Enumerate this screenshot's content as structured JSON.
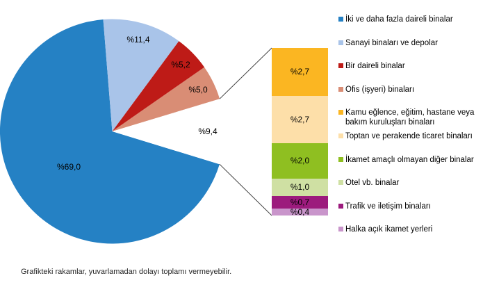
{
  "footnote": "Grafikteki rakamlar, yuvarlamadan dolayı toplamı vermeyebilir.",
  "chart_data": {
    "type": "pie",
    "variant": "bar-of-pie",
    "unit": "percent",
    "legend_position": "right",
    "grid": false,
    "pie_slices": [
      {
        "label": "İki ve daha fazla daireli binalar",
        "value": 69.0,
        "display": "%69,0",
        "color": "#2581C4"
      },
      {
        "label": "Sanayi binaları ve depolar",
        "value": 11.4,
        "display": "%11,4",
        "color": "#A9C4E9"
      },
      {
        "label": "Bir daireli binalar",
        "value": 5.2,
        "display": "%5,2",
        "color": "#BE1B17"
      },
      {
        "label": "Ofis (işyeri) binaları",
        "value": 5.0,
        "display": "%5,0",
        "color": "#D98D75"
      },
      {
        "value": 9.4,
        "display": "%9,4",
        "color": "#FFFFFF"
      }
    ],
    "bar_segments": [
      {
        "label": "Kamu eğlence, eğitim, hastane veya bakım kuruluşları binaları",
        "value": 2.7,
        "display": "%2,7",
        "color": "#FBB622"
      },
      {
        "label": "Toptan ve perakende ticaret binaları",
        "value": 2.7,
        "display": "%2,7",
        "color": "#FDDFA9"
      },
      {
        "label": "İkamet amaçlı olmayan diğer binalar",
        "value": 2.0,
        "display": "%2,0",
        "color": "#8FBF21"
      },
      {
        "label": "Otel vb. binalar",
        "value": 1.0,
        "display": "%1,0",
        "color": "#CFE0A3"
      },
      {
        "label": "Trafik ve iletişim binaları",
        "value": 0.7,
        "display": "%0,7",
        "color": "#9C1B7D"
      },
      {
        "label": "Halka açık ikamet yerleri",
        "value": 0.4,
        "display": "%0,4",
        "color": "#C995CB"
      }
    ]
  }
}
